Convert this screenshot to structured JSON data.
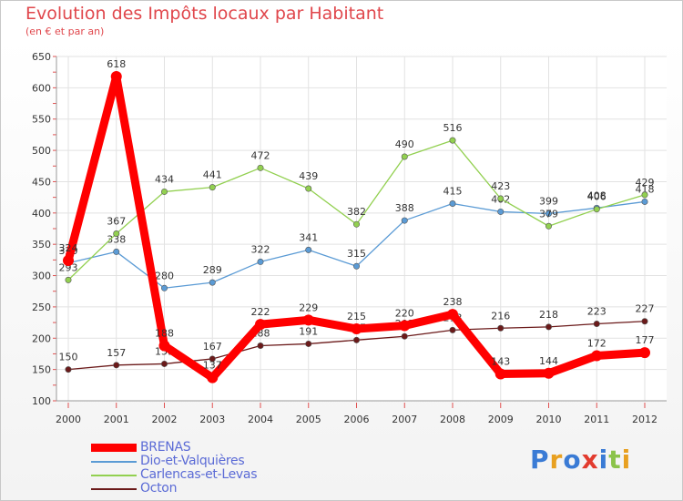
{
  "chart_data": {
    "type": "line",
    "title": "Evolution des Impôts locaux par Habitant",
    "subtitle": "(en € et par an)",
    "categories": [
      "2000",
      "2001",
      "2002",
      "2003",
      "2004",
      "2005",
      "2006",
      "2007",
      "2008",
      "2009",
      "2010",
      "2011",
      "2012"
    ],
    "ylim": [
      100,
      650
    ],
    "yticks": [
      100,
      150,
      200,
      250,
      300,
      350,
      400,
      450,
      500,
      550,
      600,
      650
    ],
    "grid": true,
    "legend_position": "bottom-left",
    "series": [
      {
        "name": "Octon",
        "color": "#6b1a1a",
        "values": [
          150,
          157,
          159,
          167,
          188,
          191,
          197,
          203,
          213,
          216,
          218,
          223,
          227
        ],
        "labels": [
          "150",
          "157",
          "159",
          "167",
          "188",
          "191",
          "197",
          "203",
          "213",
          "216",
          "218",
          "223",
          "227"
        ]
      },
      {
        "name": "Dio-et-Valquières",
        "color": "#5b9bd5",
        "values": [
          320,
          338,
          280,
          289,
          322,
          341,
          315,
          388,
          415,
          402,
          399,
          408,
          418
        ],
        "labels": [
          "320",
          "338",
          "280",
          "289",
          "322",
          "341",
          "315",
          "388",
          "415",
          "402",
          "399",
          "408",
          "418"
        ]
      },
      {
        "name": "Carlencas-et-Levas",
        "color": "#92d050",
        "values": [
          293,
          367,
          434,
          441,
          472,
          439,
          382,
          490,
          516,
          423,
          379,
          406,
          429
        ],
        "labels": [
          "293",
          "367",
          "434",
          "441",
          "472",
          "439",
          "382",
          "490",
          "516",
          "423",
          "379",
          "406",
          "429"
        ]
      },
      {
        "name": "BRENAS",
        "color": "#ff0000",
        "values": [
          324,
          618,
          188,
          137,
          222,
          229,
          215,
          220,
          238,
          143,
          144,
          172,
          177
        ],
        "labels": [
          "324",
          "618",
          "188",
          "137",
          "222",
          "229",
          "215",
          "220",
          "238",
          "143",
          "144",
          "172",
          "177"
        ]
      }
    ]
  },
  "legend": [
    {
      "name": "BRENAS",
      "color": "#ff0000",
      "thick": true
    },
    {
      "name": "Dio-et-Valquières",
      "color": "#5b9bd5",
      "thick": false
    },
    {
      "name": "Carlencas-et-Levas",
      "color": "#92d050",
      "thick": false
    },
    {
      "name": "Octon",
      "color": "#6b1a1a",
      "thick": false
    }
  ],
  "logo": {
    "text": "Proxiti"
  }
}
